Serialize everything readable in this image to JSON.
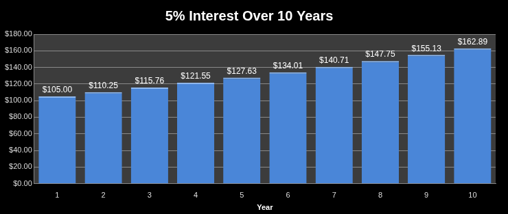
{
  "chart_data": {
    "type": "bar",
    "title": "5% Interest Over 10 Years",
    "xlabel": "Year",
    "categories": [
      "1",
      "2",
      "3",
      "4",
      "5",
      "6",
      "7",
      "8",
      "9",
      "10"
    ],
    "values": [
      105.0,
      110.25,
      115.76,
      121.55,
      127.63,
      134.01,
      140.71,
      147.75,
      155.13,
      162.89
    ],
    "value_labels": [
      "$105.00",
      "$110.25",
      "$115.76",
      "$121.55",
      "$127.63",
      "$134.01",
      "$140.71",
      "$147.75",
      "$155.13",
      "$162.89"
    ],
    "data_labels": true,
    "color": "#4a86d8",
    "ylim": [
      0,
      180
    ],
    "yticks": [
      {
        "value": 0,
        "label": "$0.00"
      },
      {
        "value": 20,
        "label": "$20.00"
      },
      {
        "value": 40,
        "label": "$40.00"
      },
      {
        "value": 60,
        "label": "$60.00"
      },
      {
        "value": 80,
        "label": "$80.00"
      },
      {
        "value": 100,
        "label": "$100.00"
      },
      {
        "value": 120,
        "label": "$120.00"
      },
      {
        "value": 140,
        "label": "$140.00"
      },
      {
        "value": 160,
        "label": "$160.00"
      },
      {
        "value": 180,
        "label": "$180.00"
      }
    ],
    "grid": true
  }
}
